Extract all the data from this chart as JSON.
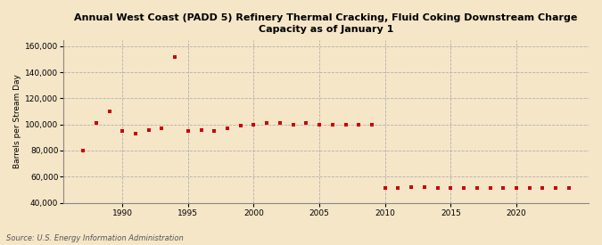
{
  "title": "Annual West Coast (PADD 5) Refinery Thermal Cracking, Fluid Coking Downstream Charge\nCapacity as of January 1",
  "ylabel": "Barrels per Stream Day",
  "source": "Source: U.S. Energy Information Administration",
  "background_color": "#f5e6c8",
  "marker_color": "#cc0000",
  "years": [
    1987,
    1988,
    1989,
    1990,
    1991,
    1992,
    1993,
    1994,
    1995,
    1996,
    1997,
    1998,
    1999,
    2000,
    2001,
    2002,
    2003,
    2004,
    2005,
    2006,
    2007,
    2008,
    2009,
    2010,
    2011,
    2012,
    2013,
    2014,
    2015,
    2016,
    2017,
    2018,
    2019,
    2020,
    2021,
    2022,
    2023,
    2024
  ],
  "values": [
    80000,
    101000,
    110000,
    95000,
    93000,
    96000,
    97000,
    152000,
    95000,
    96000,
    95000,
    97000,
    99000,
    100000,
    101000,
    101000,
    100000,
    101000,
    100000,
    100000,
    100000,
    100000,
    100000,
    51000,
    51000,
    52000,
    52000,
    51000,
    51000,
    51000,
    51000,
    51000,
    51000,
    51000,
    51000,
    51000,
    51000,
    51000
  ],
  "ylim": [
    40000,
    165000
  ],
  "yticks": [
    40000,
    60000,
    80000,
    100000,
    120000,
    140000,
    160000
  ],
  "xlim": [
    1985.5,
    2025.5
  ],
  "xticks": [
    1990,
    1995,
    2000,
    2005,
    2010,
    2015,
    2020
  ]
}
